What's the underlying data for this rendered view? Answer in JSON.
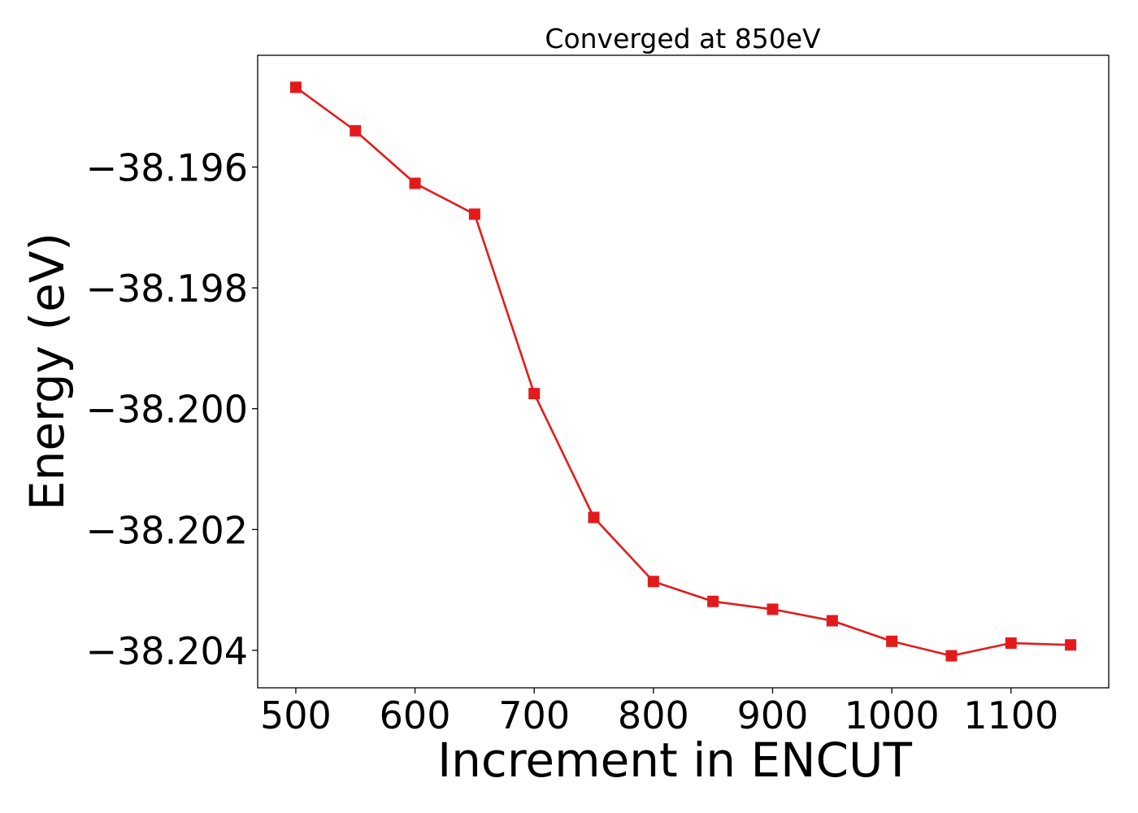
{
  "chart_data": {
    "type": "line",
    "title": "Converged at 850eV",
    "xlabel": "Increment in ENCUT",
    "ylabel": "Energy (eV)",
    "x": [
      500,
      550,
      600,
      650,
      700,
      750,
      800,
      850,
      900,
      950,
      1000,
      1050,
      1100,
      1150
    ],
    "series": [
      {
        "values": [
          -38.19468,
          -38.1954,
          -38.19627,
          -38.19678,
          -38.19975,
          -38.2018,
          -38.20286,
          -38.20319,
          -38.20332,
          -38.20351,
          -38.20385,
          -38.20409,
          -38.20388,
          -38.20391
        ],
        "color": "#e31a1c",
        "marker": "square"
      }
    ],
    "xlim": [
      468,
      1182
    ],
    "ylim": [
      -38.20462,
      -38.19415
    ],
    "xticks": [
      500,
      600,
      700,
      800,
      900,
      1000,
      1100
    ],
    "xtick_labels": [
      "500",
      "600",
      "700",
      "800",
      "900",
      "1000",
      "1100"
    ],
    "yticks": [
      -38.196,
      -38.198,
      -38.2,
      -38.202,
      -38.204
    ],
    "ytick_labels": [
      "−38.196",
      "−38.198",
      "−38.200",
      "−38.202",
      "−38.204"
    ],
    "grid": false,
    "legend": "none"
  }
}
